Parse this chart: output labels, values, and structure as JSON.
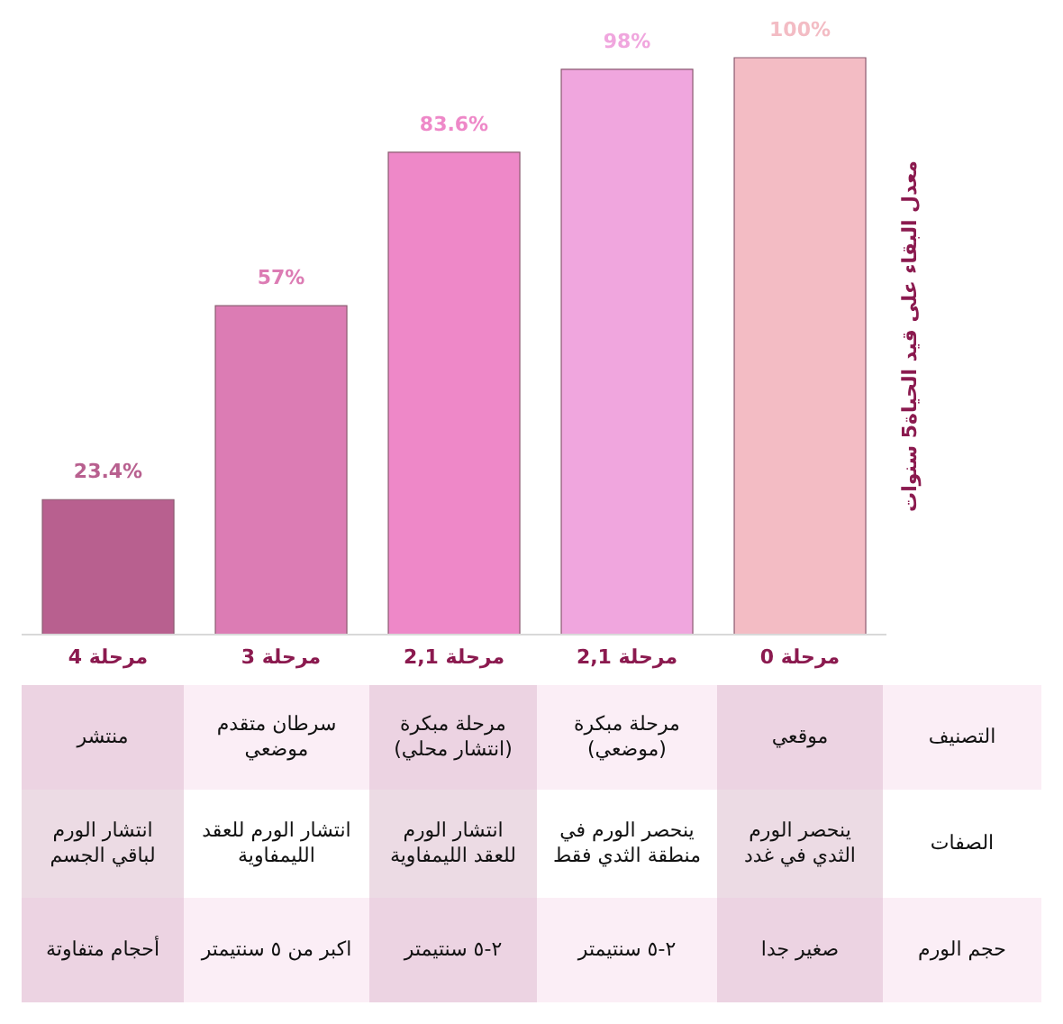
{
  "chart_data": {
    "type": "bar",
    "ylabel": "معدل البقاء على قيد الحياة5 سنوات",
    "categories": [
      "مرحلة 4",
      "مرحلة 3",
      "مرحلة 2,1",
      "مرحلة 2,1",
      "مرحلة 0"
    ],
    "values": [
      23.4,
      57,
      83.6,
      98,
      100
    ],
    "colors": [
      "#b8608f",
      "#dc7cb4",
      "#ee88c8",
      "#f0a6de",
      "#f3bcc4"
    ],
    "value_labels": [
      "23.4%",
      "57%",
      "83.6%",
      "98%",
      "100%"
    ],
    "grid": false,
    "legend": false,
    "annotations": [
      "التصنيف",
      "موقعي",
      "مرحلة مبكرة (موضعي)",
      "مرحلة مبكرة (انتشار محلي)",
      "سرطان متقدم موضعي",
      "منتشر",
      "الصفات",
      "ينحصر الورم الثدي في غدد",
      "ينحصر الورم في منطقة الثدي فقط",
      "انتشار الورم للعقد الليمفاوية",
      "انتشار الورم للعقد الليمفاوية",
      "انتشار الورم لباقي الجسم",
      "حجم الورم",
      "صغير جدا",
      "٢-٥ سنتيمتر",
      "٢-٥ سنتيمتر",
      "اكبر من ٥ سنتيمتر",
      "أحجام متفاوتة"
    ]
  }
}
